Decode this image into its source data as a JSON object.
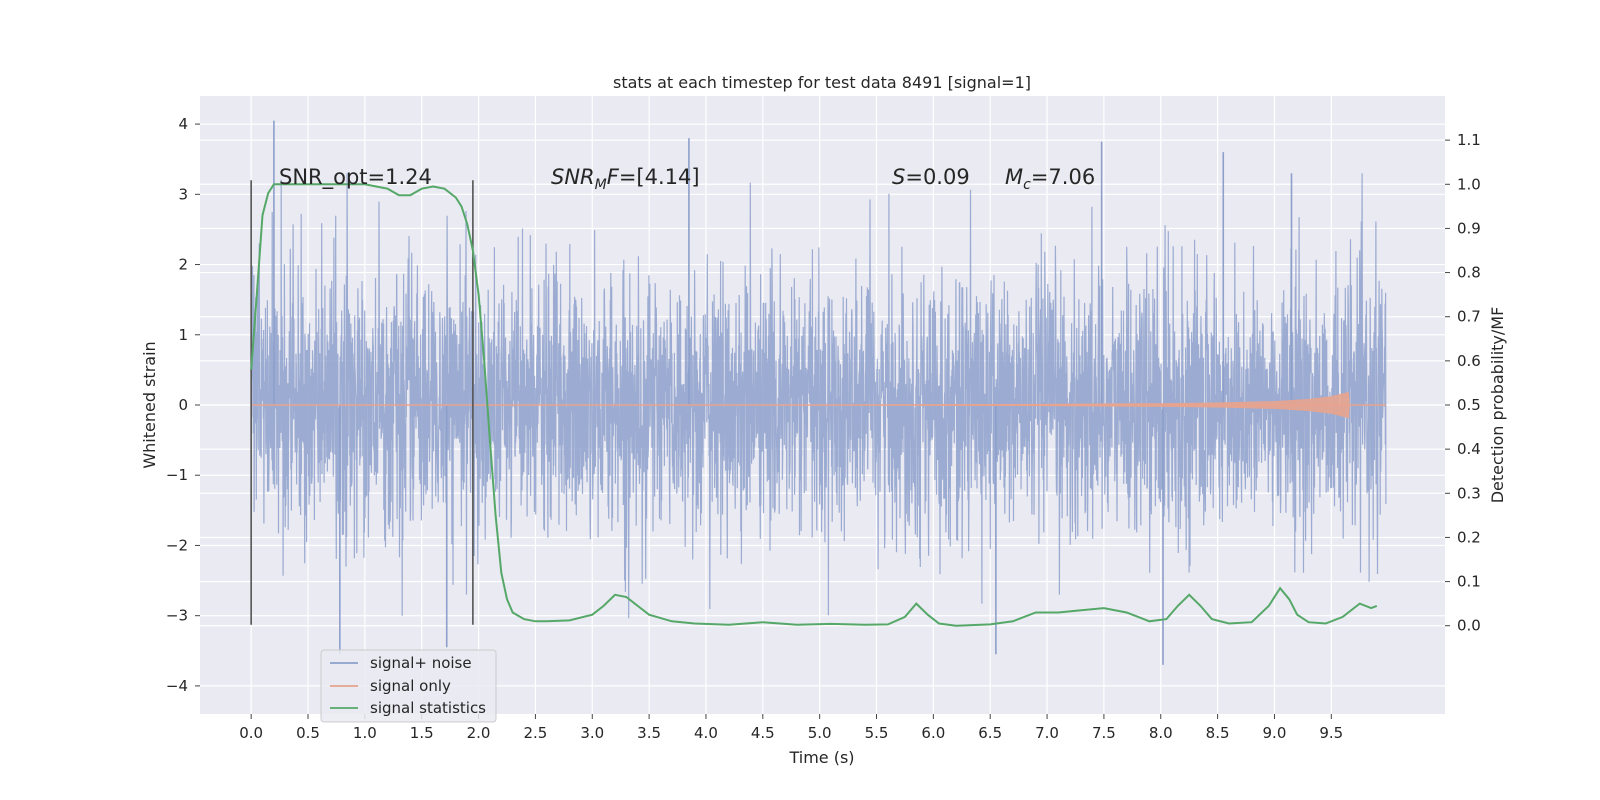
{
  "chart_data": {
    "type": "line",
    "title": "stats at each timestep for test data 8491 [signal=1]",
    "xlabel": "Time (s)",
    "ylabel": "Whitened strain",
    "ylabel_right": "Detection probability/MF",
    "xlim": [
      -0.45,
      10.5
    ],
    "ylim": [
      -4.4,
      4.4
    ],
    "ylim_right": [
      -0.2,
      1.2
    ],
    "x_ticks": [
      "0.0",
      "0.5",
      "1.0",
      "1.5",
      "2.0",
      "2.5",
      "3.0",
      "3.5",
      "4.0",
      "4.5",
      "5.0",
      "5.5",
      "6.0",
      "6.5",
      "7.0",
      "7.5",
      "8.0",
      "8.5",
      "9.0",
      "9.5"
    ],
    "y_ticks": [
      "4",
      "3",
      "2",
      "1",
      "0",
      "−1",
      "−2",
      "−3",
      "−4"
    ],
    "y_right_ticks": [
      "1.1",
      "1.0",
      "0.9",
      "0.8",
      "0.7",
      "0.6",
      "0.5",
      "0.4",
      "0.3",
      "0.2",
      "0.1",
      "0.0"
    ],
    "grid": true,
    "legend_position": "bottom-left",
    "annotations": {
      "snr_opt": "SNR_opt=1.24",
      "snr_mf_sym": "SNR",
      "snr_mf_sub": "M",
      "snr_mf_f": "F",
      "snr_mf_val": "=[4.14]",
      "s_sym": "S",
      "s_val": "=0.09",
      "mc_sym": "M",
      "mc_sub": "c",
      "mc_val": "=7.06"
    },
    "window_markers": [
      0.0,
      1.95
    ],
    "series": [
      {
        "name": "signal+ noise",
        "color": "#8da0cb",
        "axis": "left",
        "description": "whitened strain noise, approx. Gaussian, std ~0.9, range -3.7 to 4.05",
        "peak_values": [
          {
            "x": 0.2,
            "y": 4.05
          },
          {
            "x": 3.85,
            "y": 3.8
          },
          {
            "x": 7.48,
            "y": 3.75
          },
          {
            "x": 8.55,
            "y": 3.6
          },
          {
            "x": 9.15,
            "y": 3.3
          },
          {
            "x": 0.78,
            "y": -3.55
          },
          {
            "x": 1.72,
            "y": -3.45
          },
          {
            "x": 8.02,
            "y": -3.7
          },
          {
            "x": 6.55,
            "y": -3.55
          }
        ]
      },
      {
        "name": "signal only",
        "color": "#e8a48e",
        "axis": "left",
        "x": [
          0.0,
          5.0,
          6.0,
          7.0,
          8.0,
          8.5,
          9.0,
          9.3,
          9.5,
          9.65,
          9.66
        ],
        "amplitude": [
          0.0,
          0.0,
          0.005,
          0.01,
          0.02,
          0.03,
          0.05,
          0.08,
          0.12,
          0.18,
          0.0
        ]
      },
      {
        "name": "signal statistics",
        "color": "#55a868",
        "axis": "right",
        "x": [
          0.0,
          0.05,
          0.1,
          0.15,
          0.2,
          0.3,
          0.5,
          0.8,
          1.0,
          1.1,
          1.2,
          1.3,
          1.4,
          1.5,
          1.6,
          1.7,
          1.8,
          1.85,
          1.9,
          1.95,
          2.0,
          2.05,
          2.1,
          2.15,
          2.2,
          2.25,
          2.3,
          2.4,
          2.5,
          2.6,
          2.8,
          3.0,
          3.1,
          3.2,
          3.3,
          3.4,
          3.5,
          3.7,
          3.9,
          4.2,
          4.5,
          4.8,
          5.1,
          5.4,
          5.6,
          5.75,
          5.85,
          5.95,
          6.05,
          6.2,
          6.5,
          6.7,
          6.9,
          7.1,
          7.3,
          7.5,
          7.7,
          7.9,
          8.05,
          8.15,
          8.25,
          8.35,
          8.45,
          8.6,
          8.8,
          8.95,
          9.05,
          9.13,
          9.2,
          9.3,
          9.45,
          9.6,
          9.75,
          9.85,
          9.9
        ],
        "y": [
          0.58,
          0.75,
          0.93,
          0.98,
          1.0,
          1.0,
          1.0,
          1.0,
          1.0,
          0.995,
          0.99,
          0.975,
          0.975,
          0.99,
          0.995,
          0.99,
          0.97,
          0.95,
          0.91,
          0.85,
          0.75,
          0.6,
          0.42,
          0.25,
          0.12,
          0.06,
          0.03,
          0.015,
          0.01,
          0.01,
          0.012,
          0.025,
          0.045,
          0.07,
          0.065,
          0.045,
          0.025,
          0.01,
          0.005,
          0.002,
          0.008,
          0.002,
          0.004,
          0.002,
          0.003,
          0.02,
          0.05,
          0.025,
          0.005,
          0.0,
          0.003,
          0.01,
          0.03,
          0.03,
          0.035,
          0.04,
          0.03,
          0.01,
          0.015,
          0.045,
          0.07,
          0.045,
          0.015,
          0.005,
          0.008,
          0.045,
          0.085,
          0.06,
          0.025,
          0.008,
          0.005,
          0.02,
          0.05,
          0.04,
          0.045
        ]
      }
    ]
  }
}
